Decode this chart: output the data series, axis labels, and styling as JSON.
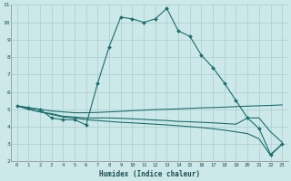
{
  "xlabel": "Humidex (Indice chaleur)",
  "bg_color": "#cde8e8",
  "grid_color": "#aacece",
  "line_color": "#1a6e6e",
  "xlim": [
    -0.5,
    23.5
  ],
  "ylim": [
    2,
    11
  ],
  "xticks": [
    0,
    1,
    2,
    3,
    4,
    5,
    6,
    7,
    8,
    9,
    10,
    11,
    12,
    13,
    14,
    15,
    16,
    17,
    18,
    19,
    20,
    21,
    22,
    23
  ],
  "yticks": [
    2,
    3,
    4,
    5,
    6,
    7,
    8,
    9,
    10,
    11
  ],
  "line1_x": [
    0,
    1,
    2,
    3,
    4,
    5,
    6,
    7,
    8,
    9,
    10,
    11,
    12,
    13,
    14,
    15,
    16,
    17,
    18,
    19,
    20,
    21,
    22,
    23
  ],
  "line1_y": [
    5.2,
    5.1,
    5.0,
    4.5,
    4.4,
    4.4,
    4.1,
    6.5,
    8.6,
    10.3,
    10.2,
    10.0,
    10.2,
    10.8,
    9.5,
    9.2,
    8.1,
    7.4,
    6.5,
    5.5,
    4.5,
    3.9,
    2.4,
    3.0
  ],
  "line2_x": [
    0,
    1,
    2,
    3,
    4,
    5,
    6,
    7,
    8,
    9,
    10,
    11,
    12,
    13,
    14,
    15,
    16,
    17,
    18,
    19,
    20,
    21,
    22,
    23
  ],
  "line2_y": [
    5.2,
    5.05,
    5.0,
    4.9,
    4.85,
    4.8,
    4.8,
    4.82,
    4.85,
    4.88,
    4.92,
    4.95,
    4.98,
    5.0,
    5.02,
    5.05,
    5.08,
    5.1,
    5.12,
    5.15,
    5.18,
    5.2,
    5.22,
    5.25
  ],
  "line3_x": [
    0,
    1,
    2,
    3,
    4,
    5,
    6,
    7,
    8,
    9,
    10,
    11,
    12,
    13,
    14,
    15,
    16,
    17,
    18,
    19,
    20,
    21,
    22,
    23
  ],
  "line3_y": [
    5.2,
    5.0,
    4.85,
    4.75,
    4.6,
    4.55,
    4.5,
    4.5,
    4.5,
    4.48,
    4.45,
    4.42,
    4.38,
    4.35,
    4.3,
    4.28,
    4.25,
    4.22,
    4.18,
    4.14,
    4.5,
    4.5,
    3.7,
    3.1
  ],
  "line4_x": [
    0,
    1,
    2,
    3,
    4,
    5,
    6,
    7,
    8,
    9,
    10,
    11,
    12,
    13,
    14,
    15,
    16,
    17,
    18,
    19,
    20,
    21,
    22,
    23
  ],
  "line4_y": [
    5.2,
    5.0,
    4.85,
    4.7,
    4.55,
    4.5,
    4.4,
    4.35,
    4.3,
    4.25,
    4.22,
    4.18,
    4.14,
    4.1,
    4.05,
    4.0,
    3.95,
    3.88,
    3.8,
    3.7,
    3.6,
    3.3,
    2.35,
    3.0
  ]
}
